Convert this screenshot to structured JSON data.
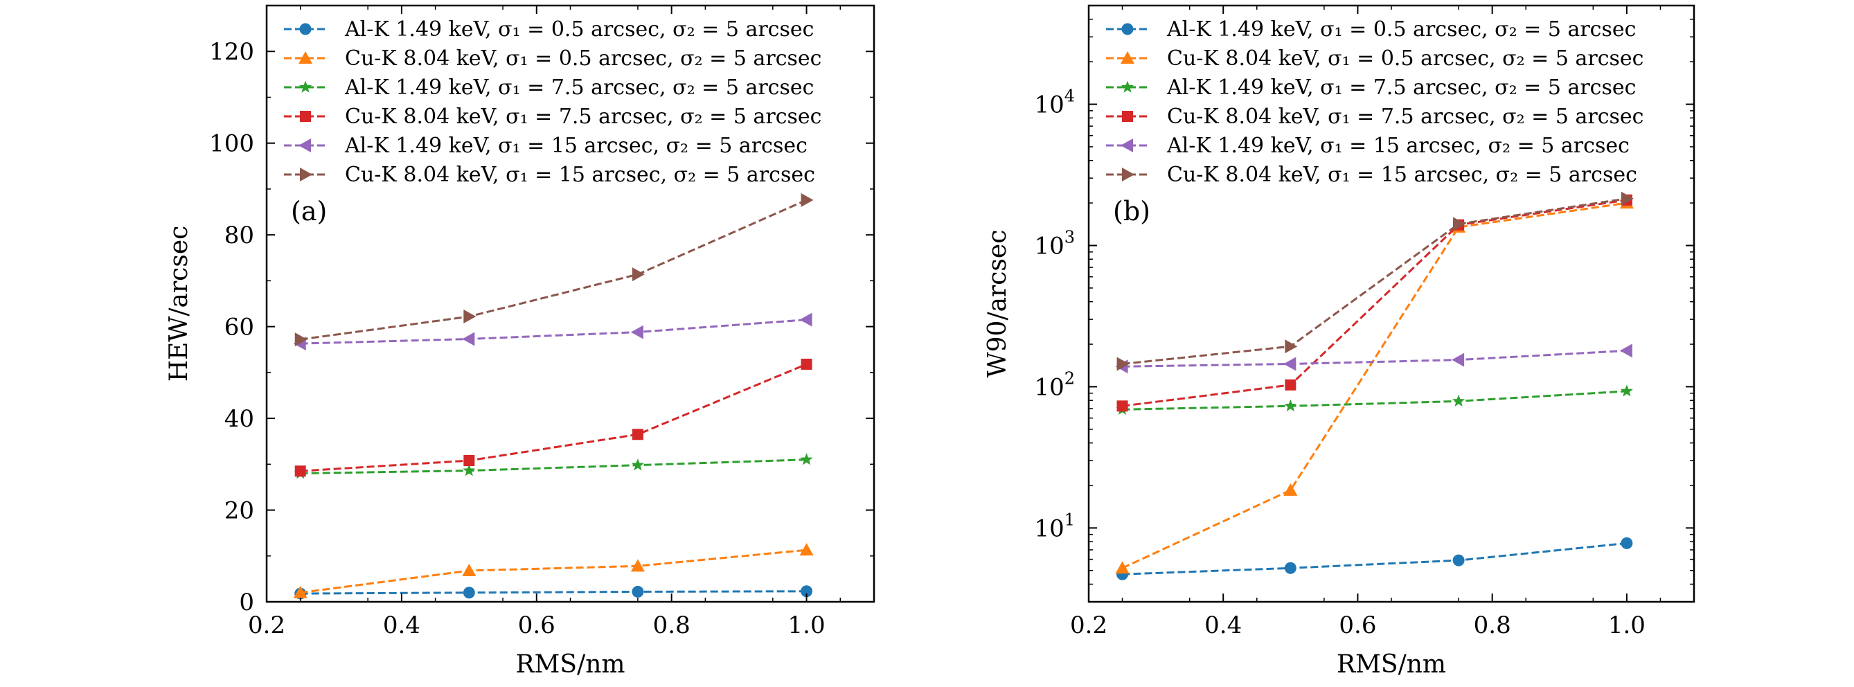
{
  "chart_data": [
    {
      "type": "line",
      "panel_label": "(a)",
      "xlabel": "RMS/nm",
      "ylabel": "HEW/arcsec",
      "x": [
        0.25,
        0.5,
        0.75,
        1.0
      ],
      "xlim": [
        0.2,
        1.1
      ],
      "ylim": [
        0,
        130
      ],
      "yscale": "linear",
      "xticks": [
        0.2,
        0.4,
        0.6,
        0.8,
        1.0
      ],
      "xtick_labels": [
        "0.2",
        "0.4",
        "0.6",
        "0.8",
        "1.0"
      ],
      "yticks": [
        0,
        20,
        40,
        60,
        80,
        100,
        120
      ],
      "ytick_labels": [
        "0",
        "20",
        "40",
        "60",
        "80",
        "100",
        "120"
      ],
      "legend_position": "top-right",
      "grid": false,
      "series": [
        {
          "name": "Al-K 1.49 keV, σ₁ = 0.5 arcsec, σ₂ = 5 arcsec",
          "values": [
            1.8,
            2.0,
            2.2,
            2.3
          ],
          "color": "#1f77b4",
          "marker": "circle"
        },
        {
          "name": "Cu-K 8.04 keV, σ₁ = 0.5 arcsec, σ₂ = 5 arcsec",
          "values": [
            2.0,
            6.8,
            7.8,
            11.3
          ],
          "color": "#ff7f0e",
          "marker": "triangle-up"
        },
        {
          "name": "Al-K 1.49 keV, σ₁ = 7.5 arcsec, σ₂ = 5 arcsec",
          "values": [
            28.0,
            28.6,
            29.8,
            31.0
          ],
          "color": "#2ca02c",
          "marker": "star"
        },
        {
          "name": "Cu-K 8.04 keV, σ₁ = 7.5 arcsec, σ₂ = 5 arcsec",
          "values": [
            28.5,
            30.8,
            36.5,
            51.8
          ],
          "color": "#d62728",
          "marker": "square"
        },
        {
          "name": "Al-K 1.49 keV, σ₁ = 15 arcsec, σ₂ = 5 arcsec",
          "values": [
            56.3,
            57.3,
            58.8,
            61.5
          ],
          "color": "#9467bd",
          "marker": "triangle-left"
        },
        {
          "name": "Cu-K 8.04 keV, σ₁ = 15 arcsec, σ₂ = 5 arcsec",
          "values": [
            57.2,
            62.2,
            71.4,
            87.6
          ],
          "color": "#8c564b",
          "marker": "triangle-right"
        }
      ]
    },
    {
      "type": "line",
      "panel_label": "(b)",
      "xlabel": "RMS/nm",
      "ylabel": "W90/arcsec",
      "x": [
        0.25,
        0.5,
        0.75,
        1.0
      ],
      "xlim": [
        0.2,
        1.1
      ],
      "ylim": [
        3,
        50000
      ],
      "yscale": "log",
      "xticks": [
        0.2,
        0.4,
        0.6,
        0.8,
        1.0
      ],
      "xtick_labels": [
        "0.2",
        "0.4",
        "0.6",
        "0.8",
        "1.0"
      ],
      "yticks": [
        10,
        100,
        1000,
        10000
      ],
      "ytick_exponents": [
        "1",
        "2",
        "3",
        "4"
      ],
      "ytick_base": "10",
      "legend_position": "top-right",
      "grid": false,
      "series": [
        {
          "name": "Al-K 1.49 keV, σ₁ = 0.5 arcsec, σ₂ = 5 arcsec",
          "values": [
            4.7,
            5.2,
            5.9,
            7.8
          ],
          "color": "#1f77b4",
          "marker": "circle"
        },
        {
          "name": "Cu-K 8.04 keV, σ₁ = 0.5 arcsec, σ₂ = 5 arcsec",
          "values": [
            5.2,
            18.5,
            1350,
            2000
          ],
          "color": "#ff7f0e",
          "marker": "triangle-up"
        },
        {
          "name": "Al-K 1.49 keV, σ₁ = 7.5 arcsec, σ₂ = 5 arcsec",
          "values": [
            69,
            73,
            79,
            93
          ],
          "color": "#2ca02c",
          "marker": "star"
        },
        {
          "name": "Cu-K 8.04 keV, σ₁ = 7.5 arcsec, σ₂ = 5 arcsec",
          "values": [
            73,
            103,
            1400,
            2100
          ],
          "color": "#d62728",
          "marker": "square"
        },
        {
          "name": "Al-K 1.49 keV, σ₁ = 15 arcsec, σ₂ = 5 arcsec",
          "values": [
            139,
            145,
            155,
            180
          ],
          "color": "#9467bd",
          "marker": "triangle-left"
        },
        {
          "name": "Cu-K 8.04 keV, σ₁ = 15 arcsec, σ₂ = 5 arcsec",
          "values": [
            145,
            193,
            1420,
            2150
          ],
          "color": "#8c564b",
          "marker": "triangle-right"
        }
      ]
    }
  ]
}
